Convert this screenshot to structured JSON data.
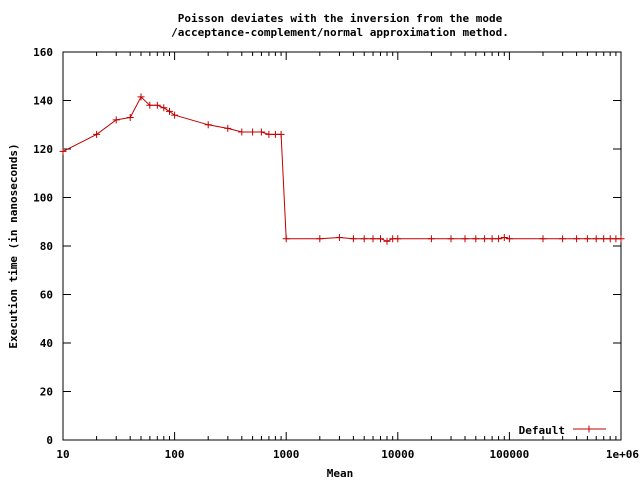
{
  "chart_data": {
    "type": "line",
    "title_line1": "Poisson deviates with the inversion from the mode",
    "title_line2": "/acceptance-complement/normal approximation method.",
    "xlabel": "Mean",
    "ylabel": "Execution time (in nanoseconds)",
    "x_scale": "log",
    "xlim": [
      10,
      1000000
    ],
    "ylim": [
      0,
      160
    ],
    "x_ticks": [
      10,
      100,
      1000,
      10000,
      100000,
      1000000
    ],
    "x_tick_labels": [
      "10",
      "100",
      "1000",
      "10000",
      "100000",
      "1e+06"
    ],
    "y_ticks": [
      0,
      20,
      40,
      60,
      80,
      100,
      120,
      140,
      160
    ],
    "y_tick_labels": [
      "0",
      "20",
      "40",
      "60",
      "80",
      "100",
      "120",
      "140",
      "160"
    ],
    "grid": false,
    "legend_position": "bottom-right",
    "series": [
      {
        "name": "Default",
        "color": "#c00000",
        "x": [
          10,
          20,
          30,
          40,
          50,
          60,
          70,
          80,
          90,
          100,
          200,
          300,
          400,
          500,
          600,
          700,
          800,
          900,
          1000,
          2000,
          3000,
          4000,
          5000,
          6000,
          7000,
          8000,
          9000,
          10000,
          20000,
          30000,
          40000,
          50000,
          60000,
          70000,
          80000,
          90000,
          100000,
          200000,
          300000,
          400000,
          500000,
          600000,
          700000,
          800000,
          900000,
          1000000
        ],
        "y": [
          119,
          126,
          132,
          133,
          141.5,
          138,
          138,
          137,
          135.5,
          134,
          130,
          128.5,
          127,
          127,
          127,
          126,
          126,
          126,
          83,
          83,
          83.5,
          83,
          83,
          83,
          83,
          82,
          83,
          83,
          83,
          83,
          83,
          83,
          83,
          83,
          83,
          83.5,
          83,
          83,
          83,
          83,
          83,
          83,
          83,
          83,
          83,
          83
        ]
      }
    ]
  }
}
